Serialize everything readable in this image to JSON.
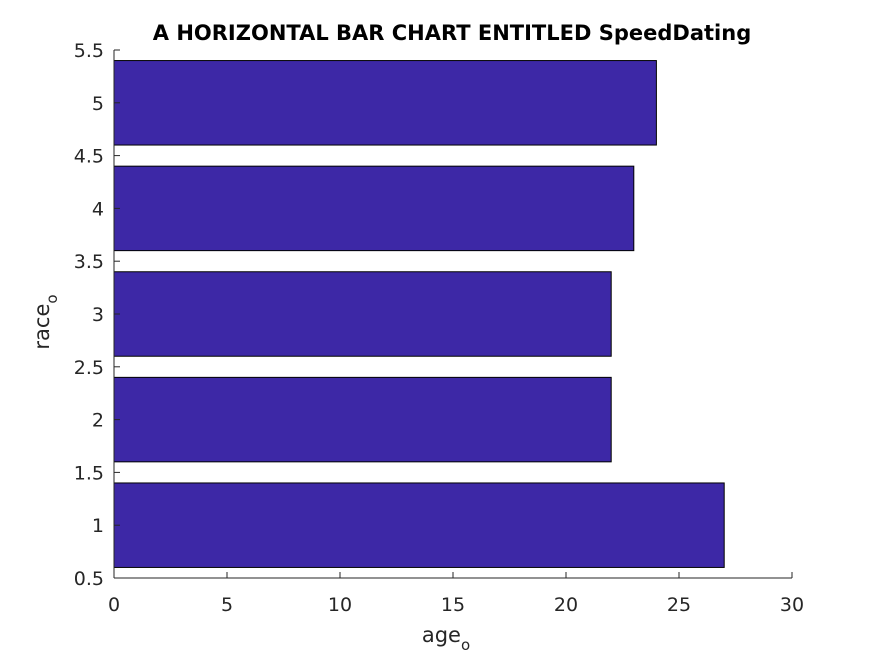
{
  "chart_data": {
    "type": "bar",
    "orientation": "horizontal",
    "title": "A HORIZONTAL BAR CHART ENTITLED SpeedDating",
    "xlabel": "age",
    "xlabel_subscript": "o",
    "ylabel": "race",
    "ylabel_subscript": "o",
    "categories": [
      1,
      2,
      3,
      4,
      5
    ],
    "values": [
      27,
      22,
      22,
      23,
      24
    ],
    "xlim": [
      0,
      30
    ],
    "ylim": [
      0.5,
      5.5
    ],
    "xticks": [
      0,
      5,
      10,
      15,
      20,
      25,
      30
    ],
    "yticks": [
      0.5,
      1,
      1.5,
      2,
      2.5,
      3,
      3.5,
      4,
      4.5,
      5,
      5.5
    ],
    "bar_color": "#3d28a6",
    "grid": false
  }
}
